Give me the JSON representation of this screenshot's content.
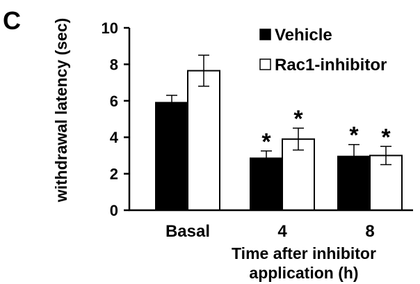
{
  "panel_label": "C",
  "chart_data": {
    "type": "bar",
    "categories": [
      "Basal",
      "4",
      "8"
    ],
    "xlabel": [
      "Time after inhibitor",
      "application (h)"
    ],
    "ylabel": "withdrawal latency (sec)",
    "ylim": [
      0,
      10
    ],
    "yticks": [
      "0",
      "2",
      "4",
      "6",
      "8",
      "10"
    ],
    "legend_position": "top-right",
    "series": [
      {
        "name": "Vehicle",
        "fill": "#000000",
        "values": [
          5.9,
          2.85,
          2.95
        ],
        "errors": [
          0.4,
          0.4,
          0.65
        ],
        "significance": [
          "",
          "*",
          "*"
        ]
      },
      {
        "name": "Rac1-inhibitor",
        "fill": "#ffffff",
        "values": [
          7.65,
          3.9,
          3.0
        ],
        "errors": [
          0.85,
          0.6,
          0.5
        ],
        "significance": [
          "",
          "*",
          "*"
        ]
      }
    ]
  }
}
